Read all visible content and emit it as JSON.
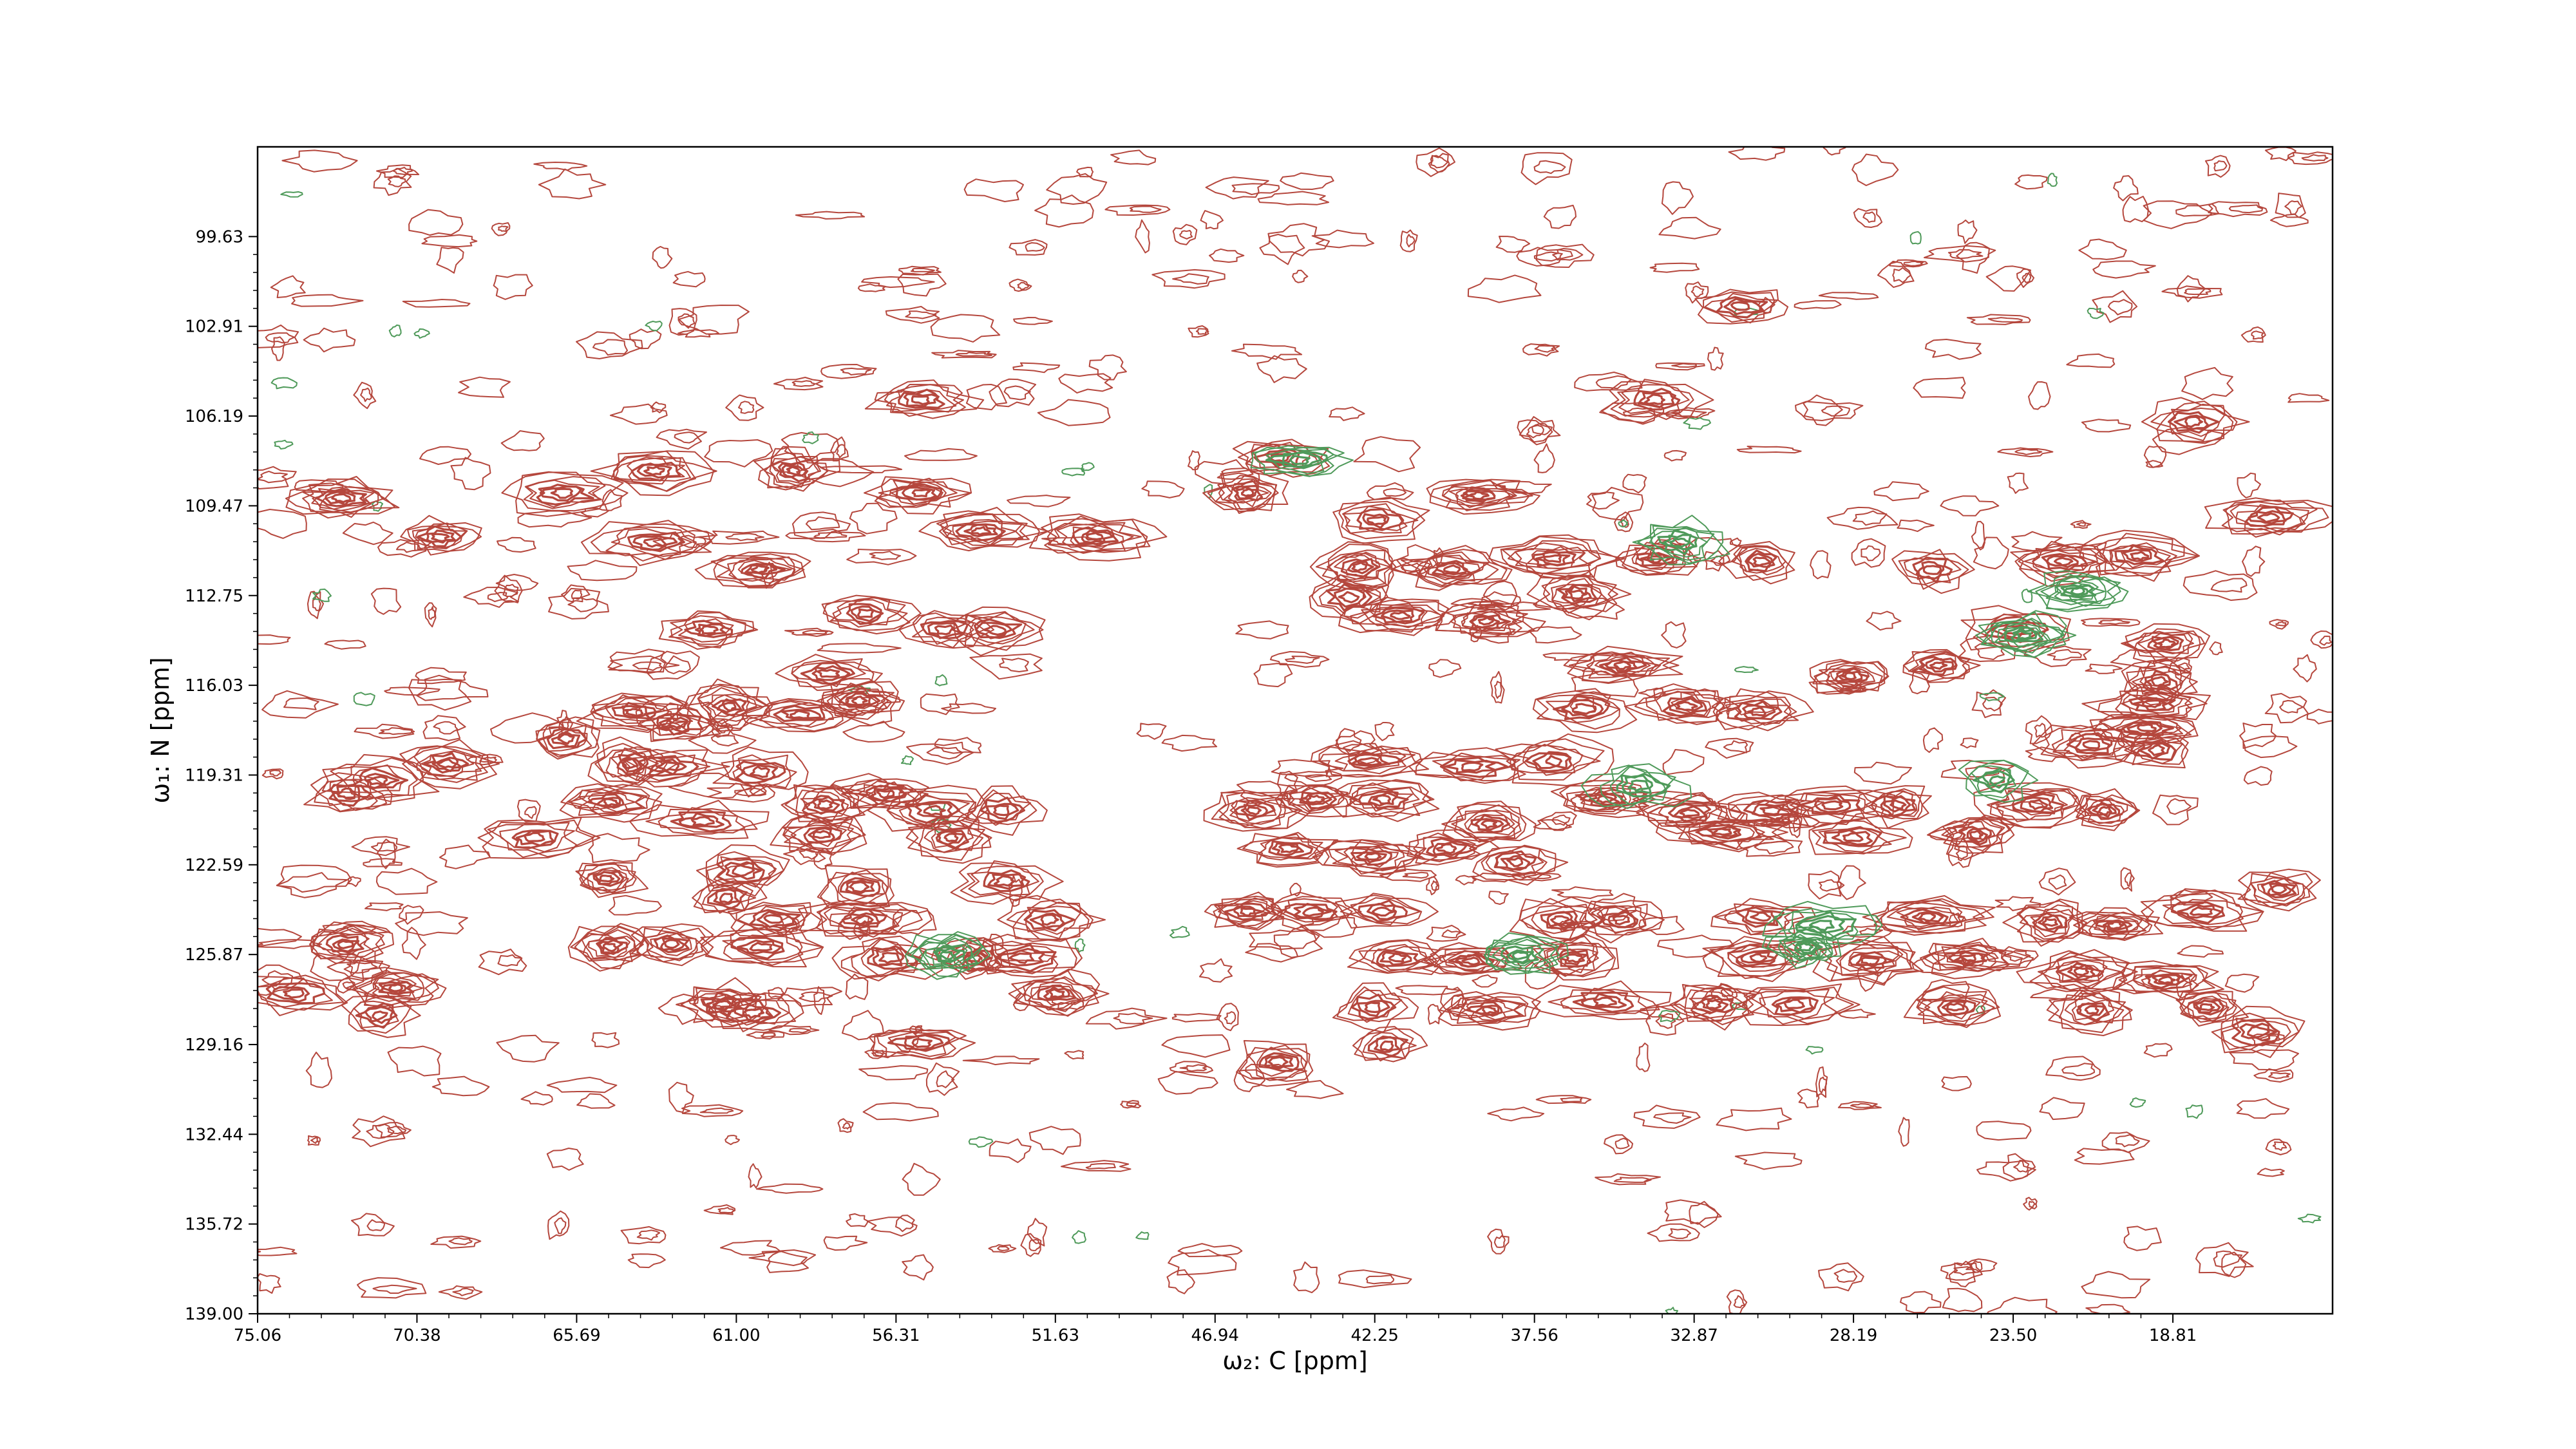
{
  "chart_data": {
    "type": "contour",
    "xlabel": "ω₂: C [ppm]",
    "ylabel": "ω₁: N [ppm]",
    "x_axis_reversed": true,
    "xlim": [
      75.06,
      14.12
    ],
    "ylim": [
      139.0,
      96.35
    ],
    "xticks": [
      "75.06",
      "70.38",
      "65.69",
      "61.00",
      "56.31",
      "51.63",
      "46.94",
      "42.25",
      "37.56",
      "32.87",
      "28.19",
      "23.50",
      "18.81"
    ],
    "yticks": [
      "99.63",
      "102.91",
      "106.19",
      "109.47",
      "112.75",
      "116.03",
      "119.31",
      "122.59",
      "125.87",
      "129.16",
      "132.44",
      "135.72",
      "139.00"
    ],
    "colors": {
      "positive": "#b5473d",
      "negative": "#4f9a5a",
      "frame": "#000000"
    },
    "series": [
      {
        "name": "positive",
        "peaks": [
          [
            72.6,
            109.2
          ],
          [
            69.7,
            110.6
          ],
          [
            66.1,
            109.0
          ],
          [
            63.4,
            108.2
          ],
          [
            63.4,
            110.8
          ],
          [
            59.3,
            108.2
          ],
          [
            55.6,
            109.0
          ],
          [
            53.8,
            110.4
          ],
          [
            50.5,
            110.6
          ],
          [
            55.6,
            105.6
          ],
          [
            60.3,
            111.8
          ],
          [
            61.8,
            114.0
          ],
          [
            57.2,
            113.4
          ],
          [
            54.9,
            114.0
          ],
          [
            53.4,
            114.0
          ],
          [
            58.3,
            115.6
          ],
          [
            62.7,
            117.4
          ],
          [
            64.0,
            117.0
          ],
          [
            61.2,
            116.8
          ],
          [
            57.4,
            116.6
          ],
          [
            59.1,
            117.1
          ],
          [
            66.0,
            118.0
          ],
          [
            64.1,
            118.9
          ],
          [
            71.5,
            119.5
          ],
          [
            69.5,
            118.9
          ],
          [
            72.4,
            120.0
          ],
          [
            63.0,
            119.0
          ],
          [
            60.3,
            119.2
          ],
          [
            56.6,
            120.0
          ],
          [
            55.2,
            120.6
          ],
          [
            53.2,
            120.6
          ],
          [
            64.7,
            120.3
          ],
          [
            62.0,
            121.0
          ],
          [
            58.4,
            120.4
          ],
          [
            66.9,
            121.6
          ],
          [
            58.5,
            121.5
          ],
          [
            54.7,
            121.6
          ],
          [
            64.8,
            123.1
          ],
          [
            60.8,
            122.8
          ],
          [
            61.3,
            123.8
          ],
          [
            57.4,
            123.4
          ],
          [
            53.1,
            123.2
          ],
          [
            51.8,
            124.6
          ],
          [
            59.9,
            124.6
          ],
          [
            57.3,
            124.6
          ],
          [
            62.9,
            125.5
          ],
          [
            60.3,
            125.6
          ],
          [
            64.7,
            125.6
          ],
          [
            72.5,
            125.5
          ],
          [
            56.5,
            126.0
          ],
          [
            54.0,
            126.0
          ],
          [
            52.6,
            126.0
          ],
          [
            51.6,
            127.3
          ],
          [
            71.0,
            127.1
          ],
          [
            71.5,
            128.1
          ],
          [
            61.4,
            127.7
          ],
          [
            55.6,
            129.1
          ],
          [
            74.0,
            127.3
          ],
          [
            60.5,
            128.0
          ],
          [
            45.0,
            107.7
          ],
          [
            46.0,
            109.0
          ],
          [
            42.2,
            110.0
          ],
          [
            39.2,
            109.1
          ],
          [
            42.7,
            111.7
          ],
          [
            40.0,
            111.8
          ],
          [
            37.0,
            111.4
          ],
          [
            43.0,
            112.8
          ],
          [
            41.5,
            113.5
          ],
          [
            39.0,
            113.7
          ],
          [
            36.3,
            112.7
          ],
          [
            34.0,
            111.4
          ],
          [
            30.9,
            111.5
          ],
          [
            25.9,
            111.8
          ],
          [
            22.0,
            111.5
          ],
          [
            19.8,
            111.3
          ],
          [
            36.1,
            116.9
          ],
          [
            33.1,
            116.8
          ],
          [
            35.0,
            115.3
          ],
          [
            31.0,
            117.0
          ],
          [
            28.3,
            115.7
          ],
          [
            25.7,
            115.3
          ],
          [
            23.5,
            114.0
          ],
          [
            19.0,
            114.5
          ],
          [
            19.2,
            115.9
          ],
          [
            19.4,
            116.7
          ],
          [
            19.6,
            117.6
          ],
          [
            19.3,
            118.4
          ],
          [
            21.2,
            118.2
          ],
          [
            42.4,
            118.8
          ],
          [
            39.4,
            119.0
          ],
          [
            37.0,
            118.8
          ],
          [
            45.8,
            120.6
          ],
          [
            44.0,
            120.2
          ],
          [
            42.0,
            120.2
          ],
          [
            38.9,
            121.1
          ],
          [
            35.5,
            120.2
          ],
          [
            33.0,
            120.7
          ],
          [
            30.6,
            120.6
          ],
          [
            28.8,
            120.4
          ],
          [
            26.9,
            120.4
          ],
          [
            22.8,
            120.4
          ],
          [
            20.8,
            120.6
          ],
          [
            28.2,
            121.6
          ],
          [
            24.6,
            121.5
          ],
          [
            32.0,
            121.4
          ],
          [
            44.8,
            122.0
          ],
          [
            42.3,
            122.3
          ],
          [
            40.1,
            122.0
          ],
          [
            38.1,
            122.5
          ],
          [
            46.0,
            124.3
          ],
          [
            44.1,
            124.3
          ],
          [
            42.0,
            124.3
          ],
          [
            36.8,
            124.6
          ],
          [
            35.0,
            124.6
          ],
          [
            30.9,
            124.5
          ],
          [
            26.0,
            124.5
          ],
          [
            22.4,
            124.7
          ],
          [
            20.5,
            124.8
          ],
          [
            41.6,
            126.0
          ],
          [
            39.4,
            126.1
          ],
          [
            36.4,
            126.0
          ],
          [
            31.0,
            126.0
          ],
          [
            27.7,
            126.1
          ],
          [
            24.8,
            126.0
          ],
          [
            21.5,
            126.5
          ],
          [
            19.0,
            126.8
          ],
          [
            42.3,
            127.8
          ],
          [
            38.9,
            127.9
          ],
          [
            35.5,
            127.6
          ],
          [
            32.3,
            127.7
          ],
          [
            29.9,
            127.7
          ],
          [
            25.2,
            127.8
          ],
          [
            21.2,
            127.9
          ],
          [
            17.8,
            127.8
          ],
          [
            16.3,
            128.7
          ],
          [
            41.9,
            129.2
          ],
          [
            45.1,
            129.8
          ],
          [
            34.0,
            105.6
          ],
          [
            18.2,
            106.4
          ],
          [
            31.5,
            102.2
          ],
          [
            16.0,
            109.9
          ],
          [
            15.7,
            123.5
          ],
          [
            18.0,
            124.3
          ]
        ]
      },
      {
        "name": "negative",
        "peaks": [
          [
            54.8,
            125.9
          ],
          [
            38.0,
            125.9
          ],
          [
            34.5,
            119.7
          ],
          [
            29.6,
            125.6
          ],
          [
            29.1,
            124.8
          ],
          [
            23.2,
            114.2
          ],
          [
            21.6,
            112.6
          ],
          [
            24.0,
            119.5
          ],
          [
            33.3,
            110.8
          ],
          [
            44.5,
            107.8
          ]
        ]
      }
    ]
  }
}
